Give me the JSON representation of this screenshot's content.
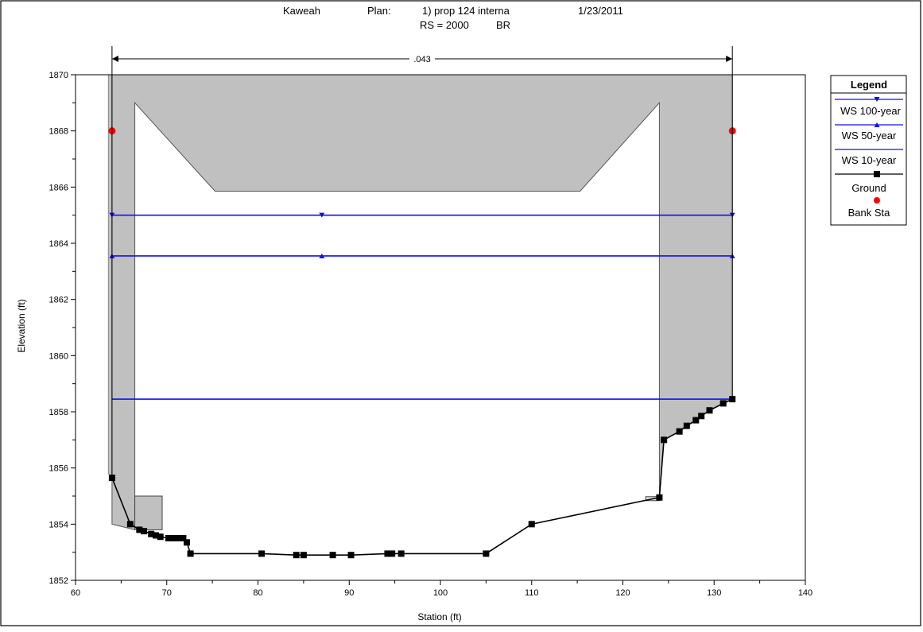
{
  "header": {
    "river": "Kaweah",
    "plan_label": "Plan:",
    "plan_name": "1) prop 124 interna",
    "date": "1/23/2011",
    "rs": "RS = 2000",
    "node": "BR"
  },
  "chart_data": {
    "type": "line",
    "xlabel": "Station (ft)",
    "ylabel": "Elevation (ft)",
    "xlim": [
      60,
      140
    ],
    "ylim": [
      1852,
      1870
    ],
    "xticks": [
      60,
      70,
      80,
      90,
      100,
      110,
      120,
      130,
      140
    ],
    "yticks": [
      1852,
      1854,
      1856,
      1858,
      1860,
      1862,
      1864,
      1866,
      1868,
      1870
    ],
    "manning_n": ".043",
    "manning_extent": [
      64,
      132
    ],
    "legend": {
      "title": "Legend",
      "position": "right",
      "items": [
        "WS 100-year",
        "WS 50-year",
        "WS 10-year",
        "Ground",
        "Bank Sta"
      ]
    },
    "series": [
      {
        "name": "WS 100-year",
        "color": "#1010ee",
        "y": 1865.0,
        "x": [
          64,
          132
        ],
        "marker_x": [
          64,
          87,
          132
        ],
        "marker": "triangle-down"
      },
      {
        "name": "WS 50-year",
        "color": "#1010ee",
        "y": 1863.55,
        "x": [
          64,
          132
        ],
        "marker_x": [
          64,
          87,
          132
        ],
        "marker": "triangle-up"
      },
      {
        "name": "WS 10-year",
        "color": "#1010ee",
        "y": 1858.45,
        "x": [
          64,
          132
        ],
        "marker_x": [],
        "marker": "none"
      },
      {
        "name": "Ground",
        "color": "#000000",
        "marker": "square",
        "x": [
          64,
          66,
          67,
          67.5,
          68.3,
          68.8,
          69.3,
          70.2,
          70.8,
          71.3,
          71.8,
          72.2,
          72.6,
          80.4,
          84.2,
          85.0,
          88.2,
          90.2,
          94.2,
          94.7,
          95.7,
          105,
          110,
          124,
          124.5,
          126.2,
          127,
          128,
          128.6,
          129.5,
          131,
          132
        ],
        "y": [
          1855.65,
          1854.0,
          1853.8,
          1853.75,
          1853.65,
          1853.6,
          1853.55,
          1853.5,
          1853.5,
          1853.5,
          1853.5,
          1853.35,
          1852.95,
          1852.95,
          1852.9,
          1852.9,
          1852.9,
          1852.9,
          1852.95,
          1852.95,
          1852.95,
          1852.95,
          1854.0,
          1854.95,
          1857.0,
          1857.3,
          1857.5,
          1857.7,
          1857.85,
          1858.05,
          1858.3,
          1858.45
        ]
      },
      {
        "name": "Bank Sta",
        "color": "#ff0000",
        "marker": "circle",
        "x": [
          64,
          132
        ],
        "y": [
          1868.0,
          1868.0
        ]
      }
    ],
    "bridge": {
      "fill": "#c0c0c0",
      "deck_top": 1870,
      "left_abutment": {
        "x": [
          63.6,
          64
        ],
        "top": 1870,
        "bottom": 1855.65
      },
      "left_pier_wall": {
        "x": [
          66.5
        ],
        "top": 1869.0
      },
      "opening_low_chord": {
        "x": [
          66.5,
          75.3,
          115.3,
          124
        ],
        "y": [
          1869.0,
          1865.85,
          1865.85,
          1869.0
        ]
      },
      "right_fill_bottom": {
        "x": [
          124,
          124.5,
          126.2,
          127,
          128,
          128.6,
          129.5,
          131,
          132
        ],
        "y": [
          1854.95,
          1857.0,
          1857.3,
          1857.5,
          1857.7,
          1857.85,
          1858.05,
          1858.3,
          1858.45
        ]
      },
      "left_pier_block": {
        "x": [
          66.5,
          69.5
        ],
        "y": [
          1853.8,
          1855.0
        ]
      },
      "right_small_block": {
        "x": [
          122.5,
          124
        ],
        "y": [
          1854.85,
          1854.95
        ]
      }
    }
  }
}
